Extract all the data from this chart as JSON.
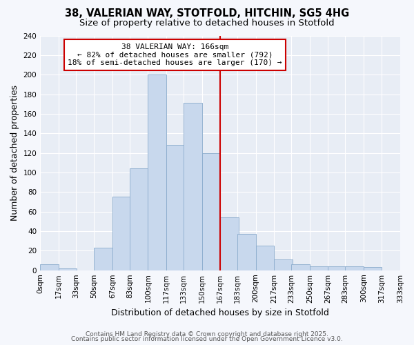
{
  "title": "38, VALERIAN WAY, STOTFOLD, HITCHIN, SG5 4HG",
  "subtitle": "Size of property relative to detached houses in Stotfold",
  "xlabel": "Distribution of detached houses by size in Stotfold",
  "ylabel": "Number of detached properties",
  "bar_values": [
    6,
    2,
    0,
    23,
    75,
    104,
    200,
    128,
    171,
    120,
    54,
    37,
    25,
    11,
    6,
    4,
    4,
    4,
    3
  ],
  "bin_edges": [
    0,
    17,
    33,
    50,
    67,
    83,
    100,
    117,
    133,
    150,
    167,
    183,
    200,
    217,
    233,
    250,
    267,
    283,
    300,
    317
  ],
  "tick_labels": [
    "0sqm",
    "17sqm",
    "33sqm",
    "50sqm",
    "67sqm",
    "83sqm",
    "100sqm",
    "117sqm",
    "133sqm",
    "150sqm",
    "167sqm",
    "183sqm",
    "200sqm",
    "217sqm",
    "233sqm",
    "250sqm",
    "267sqm",
    "283sqm",
    "300sqm",
    "317sqm",
    "333sqm"
  ],
  "bar_color": "#c8d8ed",
  "bar_edge_color": "#8aabcc",
  "vline_x": 167,
  "vline_color": "#cc0000",
  "annotation_line1": "38 VALERIAN WAY: 166sqm",
  "annotation_line2": "← 82% of detached houses are smaller (792)",
  "annotation_line3": "18% of semi-detached houses are larger (170) →",
  "annotation_box_color": "#ffffff",
  "annotation_box_edge": "#cc0000",
  "ylim": [
    0,
    240
  ],
  "yticks": [
    0,
    20,
    40,
    60,
    80,
    100,
    120,
    140,
    160,
    180,
    200,
    220,
    240
  ],
  "plot_bg_color": "#e8edf5",
  "fig_bg_color": "#f5f7fc",
  "footer_line1": "Contains HM Land Registry data © Crown copyright and database right 2025.",
  "footer_line2": "Contains public sector information licensed under the Open Government Licence v3.0.",
  "title_fontsize": 10.5,
  "subtitle_fontsize": 9.5,
  "axis_label_fontsize": 9,
  "tick_fontsize": 7.5,
  "annotation_fontsize": 8,
  "footer_fontsize": 6.5
}
